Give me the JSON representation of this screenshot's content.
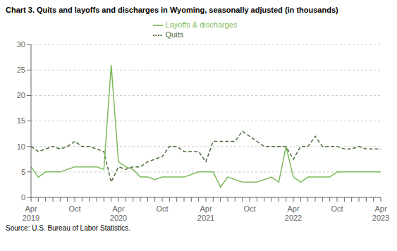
{
  "chart_data": {
    "type": "line",
    "title": "Chart 3. Quits and layoffs and discharges in Wyoming, seasonally adjusted (in thousands)",
    "source": "Source: U.S. Bureau of Labor Statistics.",
    "categories": [
      "Apr\n2019",
      null,
      null,
      null,
      null,
      null,
      "Oct",
      null,
      null,
      null,
      null,
      null,
      "Apr\n2020",
      null,
      null,
      null,
      null,
      null,
      "Oct",
      null,
      null,
      null,
      null,
      null,
      "Apr\n2021",
      null,
      null,
      null,
      null,
      null,
      "Oct",
      null,
      null,
      null,
      null,
      null,
      "Apr\n2022",
      null,
      null,
      null,
      null,
      null,
      "Oct",
      null,
      null,
      null,
      null,
      null,
      "Apr\n2023"
    ],
    "series": [
      {
        "name": "Quits",
        "color": "#4a6b3a",
        "line_style": "dashed",
        "values": [
          10,
          9,
          9.5,
          10,
          9.5,
          10,
          11,
          10,
          10,
          9.5,
          9,
          3,
          6,
          5.5,
          6,
          6,
          7,
          7.5,
          8,
          10,
          10,
          9,
          9,
          9,
          7,
          11,
          11,
          11,
          11,
          13,
          12,
          11,
          10,
          10,
          10,
          10,
          7.5,
          10,
          10,
          12,
          10,
          10,
          10,
          9.5,
          9.5,
          10,
          9.5,
          9.5,
          9.5
        ]
      },
      {
        "name": "Layoffs & discharges",
        "color": "#7dba5a",
        "line_style": "solid",
        "values": [
          6,
          4,
          5,
          5,
          5,
          5.5,
          6,
          6,
          6,
          6,
          5.5,
          26,
          7,
          6,
          5.5,
          4,
          4,
          3.5,
          4,
          4,
          4,
          4,
          4.5,
          5,
          5,
          5,
          2,
          4,
          3.5,
          3,
          3,
          3,
          3.5,
          4,
          3,
          10,
          4,
          3,
          4,
          4,
          4,
          4,
          5,
          5,
          5,
          5,
          5,
          5,
          5
        ]
      }
    ],
    "ylim": [
      0,
      30
    ],
    "yticks": [
      0,
      5,
      10,
      15,
      20,
      25,
      30
    ],
    "grid": true,
    "legend": "top"
  }
}
